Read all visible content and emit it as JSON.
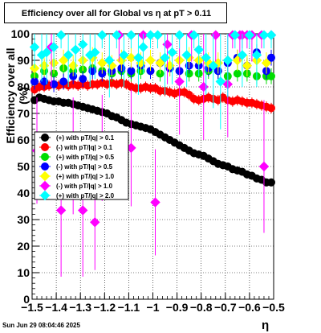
{
  "chart_data": {
    "type": "scatter",
    "title": "Efficiency over all for Global vs   η at pT > 0.11",
    "xlabel": "η",
    "ylabel": "Efficiency over all (%)",
    "xlim": [
      -1.5,
      -0.5
    ],
    "ylim": [
      0,
      100
    ],
    "x_ticks": [
      -1.5,
      -1.4,
      -1.3,
      -1.2,
      -1.1,
      -1.0,
      -0.9,
      -0.8,
      -0.7,
      -0.6,
      -0.5
    ],
    "x_tick_labels": [
      "−1.5",
      "−1.4",
      "−1.3",
      "−1.2",
      "−1.1",
      "−1",
      "−0.9",
      "−0.8",
      "−0.7",
      "−0.6",
      "−0.5"
    ],
    "y_ticks": [
      0,
      10,
      20,
      30,
      40,
      50,
      60,
      70,
      80,
      90,
      100
    ],
    "y_tick_labels": [
      "0",
      "10",
      "20",
      "30",
      "40",
      "50",
      "60",
      "70",
      "80",
      "90",
      "100"
    ],
    "grid": true,
    "legend_position": "middle-left",
    "timestamp": "Sun Jun 29 08:04:46 2025",
    "series": [
      {
        "name": "(+) with pT/|q| > 0.1",
        "color": "#000000",
        "marker": "circle",
        "x": [
          -1.49,
          -1.47,
          -1.45,
          -1.43,
          -1.41,
          -1.39,
          -1.37,
          -1.35,
          -1.33,
          -1.31,
          -1.29,
          -1.27,
          -1.25,
          -1.23,
          -1.21,
          -1.19,
          -1.17,
          -1.15,
          -1.13,
          -1.11,
          -1.09,
          -1.07,
          -1.05,
          -1.03,
          -1.01,
          -0.99,
          -0.97,
          -0.95,
          -0.93,
          -0.91,
          -0.89,
          -0.87,
          -0.85,
          -0.83,
          -0.81,
          -0.79,
          -0.77,
          -0.75,
          -0.73,
          -0.71,
          -0.69,
          -0.67,
          -0.65,
          -0.63,
          -0.61,
          -0.59,
          -0.57,
          -0.55,
          -0.53,
          -0.51
        ],
        "y": [
          75.0,
          76.0,
          75.5,
          75.0,
          74.5,
          74.5,
          74.0,
          74.0,
          73.5,
          73.0,
          72.5,
          72.0,
          71.5,
          71.0,
          70.5,
          70.0,
          69.0,
          68.5,
          67.5,
          66.5,
          66.0,
          65.5,
          65.0,
          64.5,
          64.0,
          63.0,
          62.0,
          61.0,
          60.0,
          59.0,
          58.0,
          57.0,
          56.0,
          55.0,
          54.5,
          54.0,
          53.0,
          52.0,
          51.0,
          50.5,
          50.0,
          49.0,
          48.5,
          48.0,
          47.0,
          46.5,
          45.5,
          45.0,
          44.0,
          44.0
        ],
        "err": [
          1.5,
          1.5,
          1.5,
          1.5,
          1.5,
          1.5,
          1.5,
          1.5,
          1.5,
          1.5,
          1.5,
          1.5,
          1.5,
          1.5,
          1.5,
          1.5,
          1.5,
          1.5,
          1.5,
          1.5,
          1.5,
          1.5,
          1.5,
          1.5,
          1.5,
          1.5,
          1.5,
          1.5,
          1.5,
          1.5,
          1.5,
          1.5,
          1.5,
          1.5,
          1.5,
          1.5,
          1.5,
          1.5,
          1.5,
          1.5,
          1.5,
          1.5,
          1.5,
          1.5,
          1.5,
          1.5,
          1.5,
          1.5,
          1.5,
          1.5
        ]
      },
      {
        "name": "(-) with pT/|q| > 0.1",
        "color": "#ff0000",
        "marker": "circle",
        "x": [
          -1.49,
          -1.47,
          -1.45,
          -1.43,
          -1.41,
          -1.39,
          -1.37,
          -1.35,
          -1.33,
          -1.31,
          -1.29,
          -1.27,
          -1.25,
          -1.23,
          -1.21,
          -1.19,
          -1.17,
          -1.15,
          -1.13,
          -1.11,
          -1.09,
          -1.07,
          -1.05,
          -1.03,
          -1.01,
          -0.99,
          -0.97,
          -0.95,
          -0.93,
          -0.91,
          -0.89,
          -0.87,
          -0.85,
          -0.83,
          -0.81,
          -0.79,
          -0.77,
          -0.75,
          -0.73,
          -0.71,
          -0.69,
          -0.67,
          -0.65,
          -0.63,
          -0.61,
          -0.59,
          -0.57,
          -0.55,
          -0.53,
          -0.51
        ],
        "y": [
          79.0,
          80.0,
          80.0,
          80.5,
          81.0,
          80.5,
          81.0,
          80.5,
          81.0,
          80.5,
          81.0,
          80.5,
          81.0,
          81.0,
          81.5,
          81.0,
          81.5,
          81.0,
          81.5,
          81.0,
          80.0,
          79.5,
          79.5,
          80.0,
          79.5,
          79.5,
          78.5,
          78.5,
          78.0,
          77.5,
          78.0,
          78.0,
          77.0,
          75.5,
          75.0,
          75.5,
          76.0,
          75.5,
          75.0,
          76.0,
          75.0,
          74.5,
          75.0,
          74.5,
          74.0,
          74.0,
          73.5,
          73.0,
          72.5,
          72.0
        ],
        "err": [
          2,
          2,
          2,
          2,
          2,
          2,
          2,
          2,
          2,
          2,
          2,
          2,
          2,
          2,
          2,
          2,
          2,
          2,
          2,
          2,
          2,
          2,
          2,
          2,
          2,
          2,
          2,
          2,
          2,
          2,
          2,
          2,
          2,
          2,
          2,
          2,
          2,
          2,
          2,
          2,
          2,
          2,
          2,
          2,
          2,
          2,
          2,
          2,
          2,
          2
        ]
      },
      {
        "name": "(+) with pT/|q| > 0.5",
        "color": "#00dd00",
        "marker": "circle",
        "x": [
          -1.49,
          -1.45,
          -1.41,
          -1.37,
          -1.33,
          -1.29,
          -1.25,
          -1.21,
          -1.17,
          -1.13,
          -1.09,
          -1.05,
          -1.01,
          -0.97,
          -0.93,
          -0.89,
          -0.85,
          -0.81,
          -0.77,
          -0.73,
          -0.69,
          -0.65,
          -0.61,
          -0.57,
          -0.53,
          -0.51
        ],
        "y": [
          84.0,
          86.0,
          85.0,
          87.0,
          86.0,
          86.5,
          87.0,
          86.0,
          85.0,
          86.0,
          85.0,
          86.0,
          86.0,
          85.0,
          87.0,
          86.0,
          85.0,
          85.0,
          86.0,
          86.0,
          84.0,
          85.0,
          85.0,
          84.0,
          84.0,
          84.0
        ],
        "err": [
          3,
          3,
          3,
          3,
          3,
          3,
          3,
          3,
          3,
          3,
          3,
          3,
          3,
          3,
          3,
          3,
          3,
          3,
          3,
          3,
          3,
          3,
          3,
          3,
          3,
          3
        ]
      },
      {
        "name": "(-) with pT/|q| > 0.5",
        "color": "#0000ff",
        "marker": "circle",
        "x": [
          -1.49,
          -1.45,
          -1.41,
          -1.37,
          -1.33,
          -1.29,
          -1.25,
          -1.21,
          -1.17,
          -1.13,
          -1.09,
          -1.05,
          -1.01,
          -0.97,
          -0.93,
          -0.89,
          -0.85,
          -0.81,
          -0.77,
          -0.73,
          -0.69,
          -0.65,
          -0.61,
          -0.57,
          -0.53,
          -0.51
        ],
        "y": [
          82.0,
          82.0,
          81.0,
          82.0,
          84.0,
          83.0,
          86.0,
          85.0,
          86.0,
          87.0,
          86.0,
          88.0,
          86.0,
          89.0,
          87.0,
          86.0,
          88.0,
          88.0,
          87.0,
          86.0,
          89.0,
          91.0,
          88.0,
          93.0,
          86.0,
          91.0
        ],
        "err": [
          3,
          3,
          3,
          3,
          3,
          3,
          3,
          3,
          3,
          3,
          3,
          3,
          3,
          3,
          3,
          3,
          3,
          3,
          3,
          3,
          3,
          3,
          3,
          3,
          3,
          3
        ]
      },
      {
        "name": "(+) with pT/|q| > 1.0",
        "color": "#ffff00",
        "marker": "diamond",
        "x": [
          -1.49,
          -1.45,
          -1.41,
          -1.37,
          -1.33,
          -1.29,
          -1.25,
          -1.21,
          -1.17,
          -1.13,
          -1.09,
          -1.05,
          -1.01,
          -0.97,
          -0.93,
          -0.89,
          -0.85,
          -0.81,
          -0.77,
          -0.73,
          -0.69,
          -0.65,
          -0.61,
          -0.57,
          -0.53
        ],
        "y": [
          87.0,
          88.0,
          89.0,
          90.0,
          88.0,
          90.0,
          91.0,
          89.0,
          88.0,
          90.0,
          91.0,
          89.0,
          90.0,
          89.0,
          88.0,
          90.0,
          91.0,
          90.0,
          89.0,
          89.0,
          90.0,
          90.0,
          88.0,
          90.0,
          89.0
        ],
        "err": [
          4,
          4,
          4,
          4,
          4,
          4,
          4,
          4,
          4,
          4,
          4,
          4,
          4,
          4,
          4,
          4,
          4,
          4,
          4,
          4,
          4,
          4,
          4,
          4,
          4
        ]
      },
      {
        "name": "(-) with pT/|q| > 1.0",
        "color": "#ff00ff",
        "marker": "diamond",
        "x": [
          -1.48,
          -1.42,
          -1.38,
          -1.33,
          -1.29,
          -1.24,
          -1.21,
          -1.14,
          -1.09,
          -1.04,
          -0.99,
          -0.94,
          -0.89,
          -0.84,
          -0.79,
          -0.74,
          -0.69,
          -0.64,
          -0.59,
          -0.54,
          -0.51,
          -0.67,
          -0.63,
          -0.61,
          -0.55
        ],
        "y": [
          56.0,
          95.0,
          33.5,
          54.0,
          33.5,
          29.0,
          57.0,
          99.5,
          57.0,
          99.5,
          36.5,
          96.0,
          82.0,
          99.5,
          80.0,
          99.5,
          81.0,
          99.5,
          99.5,
          50.0,
          99.5,
          99.5,
          99.5,
          99.5,
          99.5
        ],
        "err": [
          20,
          15,
          25,
          22,
          25,
          18,
          20,
          10,
          22,
          10,
          20,
          15,
          20,
          10,
          20,
          10,
          20,
          10,
          10,
          25,
          5,
          5,
          5,
          5,
          5
        ]
      },
      {
        "name": "(+) with pT/|q| > 2.0",
        "color": "#00ffff",
        "marker": "diamond",
        "x": [
          -1.49,
          -1.46,
          -1.44,
          -1.41,
          -1.38,
          -1.35,
          -1.32,
          -1.29,
          -1.26,
          -1.24,
          -1.21,
          -1.18,
          -1.15,
          -1.12,
          -1.09,
          -1.06,
          -1.04,
          -1.01,
          -0.98,
          -0.95,
          -0.92,
          -0.89,
          -0.86,
          -0.83,
          -0.81,
          -0.78,
          -0.75,
          -0.72,
          -0.69,
          -0.66,
          -0.63,
          -0.6,
          -0.57,
          -0.54,
          -0.51
        ],
        "y": [
          95.0,
          92.0,
          93.0,
          95.0,
          99.5,
          92.0,
          94.0,
          96.0,
          92.0,
          93.0,
          99.5,
          90.0,
          99.5,
          92.0,
          99.5,
          91.0,
          95.0,
          99.5,
          99.5,
          91.0,
          93.0,
          99.5,
          92.0,
          99.5,
          94.0,
          91.0,
          88.0,
          82.0,
          90.0,
          99.5,
          92.0,
          99.5,
          92.0,
          99.5,
          99.5
        ],
        "err": [
          8,
          10,
          12,
          8,
          5,
          12,
          10,
          8,
          12,
          10,
          5,
          14,
          5,
          12,
          5,
          14,
          10,
          5,
          5,
          14,
          12,
          5,
          12,
          5,
          10,
          14,
          16,
          18,
          14,
          5,
          12,
          5,
          12,
          5,
          5
        ]
      }
    ]
  }
}
